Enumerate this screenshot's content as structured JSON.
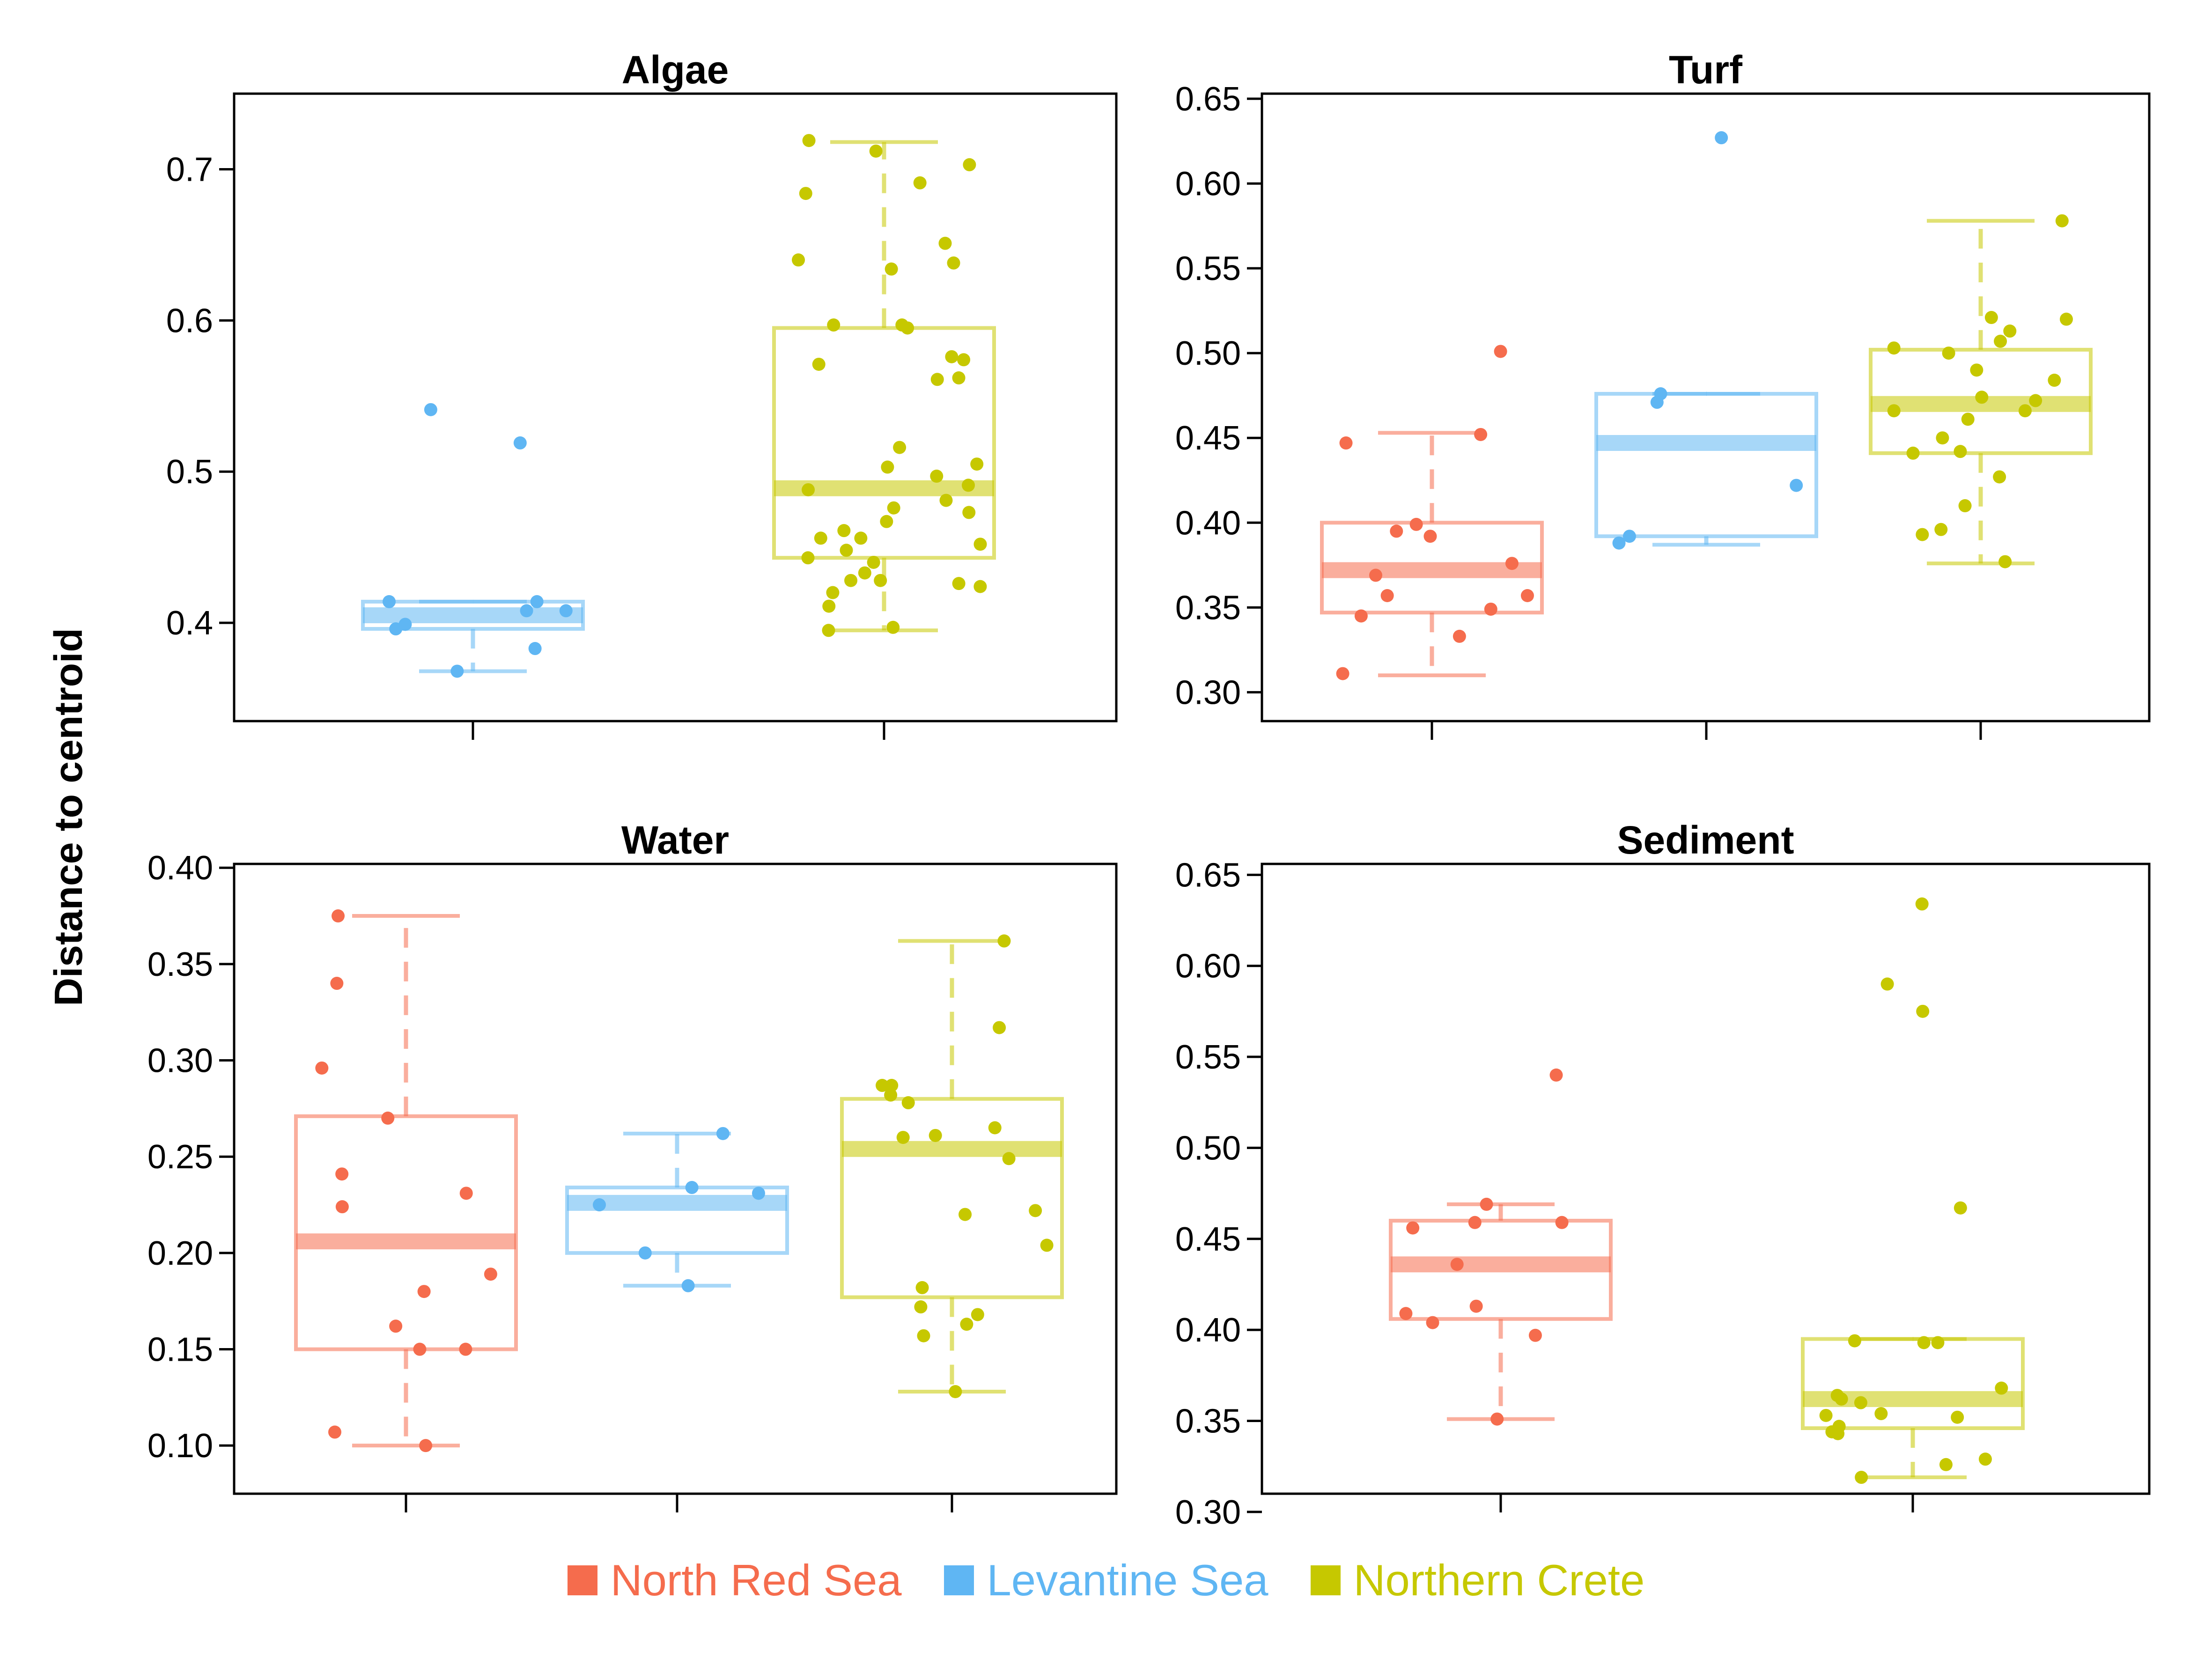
{
  "y_axis_title": "Distance to centroid",
  "colors": {
    "North Red Sea": "#f56c4d",
    "Levantine Sea": "#5fb6f3",
    "Northern Crete": "#c6c800"
  },
  "legend": [
    {
      "label": "North Red Sea",
      "color": "#f56c4d"
    },
    {
      "label": "Levantine Sea",
      "color": "#5fb6f3"
    },
    {
      "label": "Northern Crete",
      "color": "#c6c800"
    }
  ],
  "chart_data": [
    {
      "type": "box",
      "title": "Algae",
      "ylim": [
        0.335,
        0.75
      ],
      "yticks": [
        "0.4",
        "0.5",
        "0.6",
        "0.7"
      ],
      "groups": [
        {
          "name": "Levantine Sea",
          "min": 0.368,
          "q1": 0.396,
          "median": 0.405,
          "q3": 0.414,
          "max": 0.414,
          "points": [
            0.519,
            0.414,
            0.368,
            0.414,
            0.399,
            0.383,
            0.396,
            0.408,
            0.541,
            0.408
          ]
        },
        {
          "name": "Northern Crete",
          "min": 0.395,
          "q1": 0.443,
          "median": 0.489,
          "q3": 0.595,
          "max": 0.718,
          "points": [
            0.712,
            0.703,
            0.719,
            0.684,
            0.691,
            0.638,
            0.64,
            0.634,
            0.651,
            0.597,
            0.597,
            0.595,
            0.576,
            0.571,
            0.574,
            0.562,
            0.561,
            0.516,
            0.505,
            0.503,
            0.497,
            0.491,
            0.488,
            0.481,
            0.476,
            0.473,
            0.467,
            0.461,
            0.456,
            0.456,
            0.452,
            0.448,
            0.443,
            0.44,
            0.433,
            0.428,
            0.428,
            0.426,
            0.424,
            0.42,
            0.411,
            0.397,
            0.395
          ]
        }
      ]
    },
    {
      "type": "box",
      "title": "Turf",
      "ylim": [
        0.283,
        0.653
      ],
      "yticks": [
        "0.30",
        "0.35",
        "0.40",
        "0.45",
        "0.50",
        "0.55",
        "0.60",
        "0.65"
      ],
      "groups": [
        {
          "name": "North Red Sea",
          "min": 0.31,
          "q1": 0.347,
          "median": 0.372,
          "q3": 0.4,
          "max": 0.453,
          "points": [
            0.501,
            0.452,
            0.447,
            0.399,
            0.395,
            0.392,
            0.376,
            0.369,
            0.357,
            0.357,
            0.349,
            0.345,
            0.333,
            0.311
          ]
        },
        {
          "name": "Levantine Sea",
          "min": 0.387,
          "q1": 0.392,
          "median": 0.447,
          "q3": 0.476,
          "max": 0.476,
          "points": [
            0.627,
            0.476,
            0.471,
            0.422,
            0.392,
            0.388
          ]
        },
        {
          "name": "Northern Crete",
          "min": 0.376,
          "q1": 0.441,
          "median": 0.47,
          "q3": 0.502,
          "max": 0.578,
          "points": [
            0.578,
            0.521,
            0.52,
            0.513,
            0.507,
            0.503,
            0.5,
            0.49,
            0.484,
            0.474,
            0.472,
            0.466,
            0.466,
            0.461,
            0.45,
            0.442,
            0.441,
            0.427,
            0.41,
            0.396,
            0.393,
            0.377
          ]
        }
      ]
    },
    {
      "type": "box",
      "title": "Water",
      "ylim": [
        0.075,
        0.402
      ],
      "yticks": [
        "0.10",
        "0.15",
        "0.20",
        "0.25",
        "0.30",
        "0.35",
        "0.40"
      ],
      "groups": [
        {
          "name": "North Red Sea",
          "min": 0.1,
          "q1": 0.15,
          "median": 0.206,
          "q3": 0.271,
          "max": 0.375,
          "points": [
            0.375,
            0.34,
            0.296,
            0.27,
            0.241,
            0.231,
            0.224,
            0.189,
            0.18,
            0.162,
            0.15,
            0.15,
            0.107,
            0.1
          ]
        },
        {
          "name": "Levantine Sea",
          "min": 0.183,
          "q1": 0.2,
          "median": 0.226,
          "q3": 0.234,
          "max": 0.262,
          "points": [
            0.262,
            0.234,
            0.231,
            0.225,
            0.2,
            0.183
          ]
        },
        {
          "name": "Northern Crete",
          "min": 0.128,
          "q1": 0.177,
          "median": 0.254,
          "q3": 0.28,
          "max": 0.362,
          "points": [
            0.362,
            0.317,
            0.287,
            0.287,
            0.282,
            0.278,
            0.265,
            0.261,
            0.26,
            0.249,
            0.222,
            0.22,
            0.204,
            0.182,
            0.172,
            0.168,
            0.163,
            0.157,
            0.128
          ]
        }
      ]
    },
    {
      "type": "box",
      "title": "Sediment",
      "ylim": [
        0.31,
        0.656
      ],
      "yticks": [
        "0.30",
        "0.35",
        "0.40",
        "0.45",
        "0.50",
        "0.55",
        "0.60",
        "0.65"
      ],
      "groups": [
        {
          "name": "North Red Sea",
          "min": 0.351,
          "q1": 0.406,
          "median": 0.436,
          "q3": 0.46,
          "max": 0.469,
          "points": [
            0.54,
            0.469,
            0.459,
            0.459,
            0.456,
            0.436,
            0.413,
            0.409,
            0.404,
            0.397,
            0.351
          ]
        },
        {
          "name": "Northern Crete",
          "min": 0.319,
          "q1": 0.346,
          "median": 0.362,
          "q3": 0.395,
          "max": 0.395,
          "points": [
            0.634,
            0.59,
            0.575,
            0.467,
            0.394,
            0.393,
            0.393,
            0.368,
            0.364,
            0.362,
            0.36,
            0.354,
            0.353,
            0.352,
            0.347,
            0.344,
            0.343,
            0.329,
            0.326,
            0.319
          ]
        }
      ]
    }
  ]
}
